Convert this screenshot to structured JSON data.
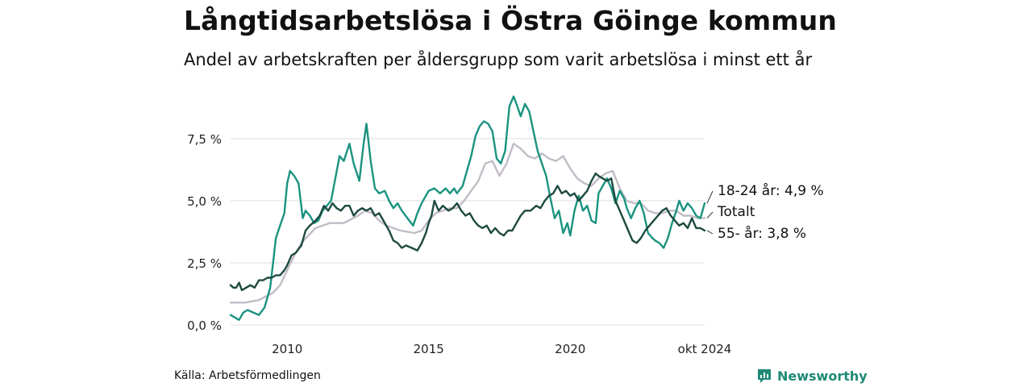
{
  "title": "Långtidsarbetslösa i Östra Göinge kommun",
  "subtitle": "Andel av arbetskraften per åldersgrupp som varit arbetslösa i minst ett år",
  "source": "Källa: Arbetsförmedlingen",
  "brand": {
    "name": "Newsworthy",
    "icon": "bar-chart-speech-icon",
    "color": "#1f8a77"
  },
  "chart_data": {
    "type": "line",
    "x_unit": "year",
    "xlim": [
      2008.0,
      2024.75
    ],
    "ylim": [
      0,
      9.5
    ],
    "y_ticks": [
      {
        "value": 0,
        "label": "0,0 %"
      },
      {
        "value": 2.5,
        "label": "2,5 %"
      },
      {
        "value": 5,
        "label": "5,0 %"
      },
      {
        "value": 7.5,
        "label": "7,5 %"
      }
    ],
    "x_ticks": [
      {
        "value": 2010,
        "label": "2010"
      },
      {
        "value": 2015,
        "label": "2015"
      },
      {
        "value": 2020,
        "label": "2020"
      },
      {
        "value": 2024.75,
        "label": "okt 2024"
      }
    ],
    "grid": "horizontal",
    "series": [
      {
        "name": "Totalt",
        "end_label": "Totalt",
        "color": "#c2bcc6",
        "points": [
          [
            2008.0,
            0.9
          ],
          [
            2008.5,
            0.9
          ],
          [
            2009.0,
            1.0
          ],
          [
            2009.5,
            1.3
          ],
          [
            2009.75,
            1.6
          ],
          [
            2010.0,
            2.2
          ],
          [
            2010.25,
            2.8
          ],
          [
            2010.5,
            3.3
          ],
          [
            2010.75,
            3.6
          ],
          [
            2011.0,
            3.9
          ],
          [
            2011.5,
            4.1
          ],
          [
            2012.0,
            4.1
          ],
          [
            2012.5,
            4.4
          ],
          [
            2012.75,
            4.6
          ],
          [
            2013.0,
            4.5
          ],
          [
            2013.25,
            4.2
          ],
          [
            2013.5,
            4.0
          ],
          [
            2013.75,
            3.9
          ],
          [
            2014.0,
            3.8
          ],
          [
            2014.5,
            3.7
          ],
          [
            2014.75,
            3.8
          ],
          [
            2015.0,
            4.2
          ],
          [
            2015.25,
            4.5
          ],
          [
            2015.5,
            4.6
          ],
          [
            2015.75,
            4.7
          ],
          [
            2016.0,
            4.7
          ],
          [
            2016.25,
            5.0
          ],
          [
            2016.5,
            5.4
          ],
          [
            2016.75,
            5.8
          ],
          [
            2017.0,
            6.5
          ],
          [
            2017.25,
            6.6
          ],
          [
            2017.5,
            6.0
          ],
          [
            2017.75,
            6.5
          ],
          [
            2018.0,
            7.3
          ],
          [
            2018.25,
            7.1
          ],
          [
            2018.5,
            6.8
          ],
          [
            2018.75,
            6.7
          ],
          [
            2019.0,
            6.9
          ],
          [
            2019.25,
            6.7
          ],
          [
            2019.5,
            6.6
          ],
          [
            2019.75,
            6.8
          ],
          [
            2020.0,
            6.3
          ],
          [
            2020.25,
            5.9
          ],
          [
            2020.5,
            5.7
          ],
          [
            2020.75,
            5.6
          ],
          [
            2021.0,
            5.9
          ],
          [
            2021.25,
            6.1
          ],
          [
            2021.5,
            6.2
          ],
          [
            2021.75,
            5.5
          ],
          [
            2022.0,
            5.0
          ],
          [
            2022.25,
            4.9
          ],
          [
            2022.5,
            4.9
          ],
          [
            2022.75,
            4.6
          ],
          [
            2023.0,
            4.5
          ],
          [
            2023.25,
            4.5
          ],
          [
            2023.5,
            4.6
          ],
          [
            2023.75,
            4.6
          ],
          [
            2024.0,
            4.4
          ],
          [
            2024.25,
            4.4
          ],
          [
            2024.5,
            4.3
          ],
          [
            2024.75,
            4.3
          ]
        ]
      },
      {
        "name": "18-24 år",
        "end_label": "18-24 år: 4,9 %",
        "color": "#1a9380",
        "points": [
          [
            2008.0,
            0.4
          ],
          [
            2008.15,
            0.3
          ],
          [
            2008.3,
            0.2
          ],
          [
            2008.45,
            0.5
          ],
          [
            2008.6,
            0.6
          ],
          [
            2008.8,
            0.5
          ],
          [
            2009.0,
            0.4
          ],
          [
            2009.2,
            0.7
          ],
          [
            2009.4,
            1.5
          ],
          [
            2009.5,
            2.5
          ],
          [
            2009.6,
            3.5
          ],
          [
            2009.75,
            4.0
          ],
          [
            2009.9,
            4.5
          ],
          [
            2010.0,
            5.7
          ],
          [
            2010.1,
            6.2
          ],
          [
            2010.25,
            6.0
          ],
          [
            2010.4,
            5.7
          ],
          [
            2010.55,
            4.3
          ],
          [
            2010.65,
            4.6
          ],
          [
            2010.8,
            4.4
          ],
          [
            2010.95,
            4.1
          ],
          [
            2011.1,
            4.2
          ],
          [
            2011.25,
            4.6
          ],
          [
            2011.4,
            4.8
          ],
          [
            2011.55,
            5.0
          ],
          [
            2011.7,
            5.9
          ],
          [
            2011.85,
            6.8
          ],
          [
            2012.0,
            6.6
          ],
          [
            2012.2,
            7.3
          ],
          [
            2012.35,
            6.5
          ],
          [
            2012.55,
            5.8
          ],
          [
            2012.7,
            7.3
          ],
          [
            2012.8,
            8.1
          ],
          [
            2012.95,
            6.6
          ],
          [
            2013.1,
            5.5
          ],
          [
            2013.25,
            5.3
          ],
          [
            2013.45,
            5.4
          ],
          [
            2013.6,
            5.0
          ],
          [
            2013.75,
            4.7
          ],
          [
            2013.9,
            4.9
          ],
          [
            2014.05,
            4.6
          ],
          [
            2014.25,
            4.3
          ],
          [
            2014.45,
            4.0
          ],
          [
            2014.6,
            4.5
          ],
          [
            2014.75,
            4.9
          ],
          [
            2014.9,
            5.2
          ],
          [
            2015.0,
            5.4
          ],
          [
            2015.2,
            5.5
          ],
          [
            2015.4,
            5.3
          ],
          [
            2015.6,
            5.5
          ],
          [
            2015.75,
            5.3
          ],
          [
            2015.9,
            5.5
          ],
          [
            2016.0,
            5.3
          ],
          [
            2016.2,
            5.6
          ],
          [
            2016.35,
            6.2
          ],
          [
            2016.5,
            6.8
          ],
          [
            2016.65,
            7.6
          ],
          [
            2016.8,
            8.0
          ],
          [
            2016.95,
            8.2
          ],
          [
            2017.1,
            8.1
          ],
          [
            2017.25,
            7.8
          ],
          [
            2017.4,
            6.7
          ],
          [
            2017.55,
            6.5
          ],
          [
            2017.7,
            7.0
          ],
          [
            2017.85,
            8.8
          ],
          [
            2018.0,
            9.2
          ],
          [
            2018.1,
            8.9
          ],
          [
            2018.25,
            8.4
          ],
          [
            2018.4,
            8.9
          ],
          [
            2018.55,
            8.6
          ],
          [
            2018.7,
            7.8
          ],
          [
            2018.85,
            7.0
          ],
          [
            2019.0,
            6.5
          ],
          [
            2019.15,
            6.0
          ],
          [
            2019.3,
            5.1
          ],
          [
            2019.45,
            4.3
          ],
          [
            2019.6,
            4.6
          ],
          [
            2019.75,
            3.7
          ],
          [
            2019.9,
            4.1
          ],
          [
            2020.0,
            3.6
          ],
          [
            2020.15,
            4.6
          ],
          [
            2020.3,
            5.2
          ],
          [
            2020.45,
            4.6
          ],
          [
            2020.6,
            4.8
          ],
          [
            2020.75,
            4.2
          ],
          [
            2020.9,
            4.1
          ],
          [
            2021.0,
            5.3
          ],
          [
            2021.15,
            5.6
          ],
          [
            2021.3,
            5.9
          ],
          [
            2021.45,
            5.5
          ],
          [
            2021.6,
            4.9
          ],
          [
            2021.75,
            5.4
          ],
          [
            2021.9,
            5.1
          ],
          [
            2022.0,
            4.7
          ],
          [
            2022.15,
            4.3
          ],
          [
            2022.3,
            4.7
          ],
          [
            2022.45,
            5.0
          ],
          [
            2022.6,
            4.5
          ],
          [
            2022.75,
            3.7
          ],
          [
            2022.9,
            3.5
          ],
          [
            2023.0,
            3.4
          ],
          [
            2023.15,
            3.3
          ],
          [
            2023.3,
            3.1
          ],
          [
            2023.45,
            3.5
          ],
          [
            2023.6,
            4.1
          ],
          [
            2023.75,
            4.6
          ],
          [
            2023.85,
            5.0
          ],
          [
            2024.0,
            4.6
          ],
          [
            2024.15,
            4.9
          ],
          [
            2024.3,
            4.7
          ],
          [
            2024.45,
            4.4
          ],
          [
            2024.6,
            4.3
          ],
          [
            2024.75,
            4.9
          ]
        ]
      },
      {
        "name": "55- år",
        "end_label": "55- år: 3,8 %",
        "color": "#1d4a40",
        "points": [
          [
            2008.0,
            1.6
          ],
          [
            2008.1,
            1.5
          ],
          [
            2008.2,
            1.5
          ],
          [
            2008.3,
            1.7
          ],
          [
            2008.4,
            1.4
          ],
          [
            2008.55,
            1.5
          ],
          [
            2008.7,
            1.6
          ],
          [
            2008.85,
            1.5
          ],
          [
            2009.0,
            1.8
          ],
          [
            2009.15,
            1.8
          ],
          [
            2009.3,
            1.9
          ],
          [
            2009.45,
            1.9
          ],
          [
            2009.6,
            2.0
          ],
          [
            2009.75,
            2.0
          ],
          [
            2009.9,
            2.2
          ],
          [
            2010.0,
            2.4
          ],
          [
            2010.15,
            2.8
          ],
          [
            2010.3,
            2.9
          ],
          [
            2010.5,
            3.2
          ],
          [
            2010.65,
            3.8
          ],
          [
            2010.8,
            4.0
          ],
          [
            2011.0,
            4.2
          ],
          [
            2011.15,
            4.4
          ],
          [
            2011.3,
            4.8
          ],
          [
            2011.45,
            4.6
          ],
          [
            2011.6,
            4.9
          ],
          [
            2011.75,
            4.7
          ],
          [
            2011.9,
            4.6
          ],
          [
            2012.05,
            4.8
          ],
          [
            2012.2,
            4.8
          ],
          [
            2012.35,
            4.4
          ],
          [
            2012.5,
            4.6
          ],
          [
            2012.65,
            4.7
          ],
          [
            2012.8,
            4.6
          ],
          [
            2012.95,
            4.7
          ],
          [
            2013.1,
            4.4
          ],
          [
            2013.25,
            4.5
          ],
          [
            2013.45,
            4.1
          ],
          [
            2013.6,
            3.8
          ],
          [
            2013.75,
            3.4
          ],
          [
            2013.9,
            3.3
          ],
          [
            2014.05,
            3.1
          ],
          [
            2014.2,
            3.2
          ],
          [
            2014.4,
            3.1
          ],
          [
            2014.6,
            3.0
          ],
          [
            2014.75,
            3.3
          ],
          [
            2014.9,
            3.7
          ],
          [
            2015.0,
            4.1
          ],
          [
            2015.1,
            4.4
          ],
          [
            2015.2,
            5.0
          ],
          [
            2015.35,
            4.6
          ],
          [
            2015.5,
            4.8
          ],
          [
            2015.7,
            4.6
          ],
          [
            2015.85,
            4.7
          ],
          [
            2016.0,
            4.9
          ],
          [
            2016.15,
            4.6
          ],
          [
            2016.3,
            4.4
          ],
          [
            2016.45,
            4.5
          ],
          [
            2016.6,
            4.2
          ],
          [
            2016.75,
            4.0
          ],
          [
            2016.9,
            3.9
          ],
          [
            2017.05,
            4.0
          ],
          [
            2017.2,
            3.7
          ],
          [
            2017.35,
            3.9
          ],
          [
            2017.5,
            3.7
          ],
          [
            2017.65,
            3.6
          ],
          [
            2017.8,
            3.8
          ],
          [
            2017.95,
            3.8
          ],
          [
            2018.1,
            4.1
          ],
          [
            2018.25,
            4.4
          ],
          [
            2018.4,
            4.6
          ],
          [
            2018.6,
            4.6
          ],
          [
            2018.8,
            4.8
          ],
          [
            2018.95,
            4.7
          ],
          [
            2019.1,
            5.0
          ],
          [
            2019.25,
            5.2
          ],
          [
            2019.4,
            5.3
          ],
          [
            2019.55,
            5.6
          ],
          [
            2019.7,
            5.3
          ],
          [
            2019.85,
            5.4
          ],
          [
            2020.0,
            5.2
          ],
          [
            2020.15,
            5.3
          ],
          [
            2020.3,
            5.0
          ],
          [
            2020.45,
            5.2
          ],
          [
            2020.6,
            5.4
          ],
          [
            2020.75,
            5.8
          ],
          [
            2020.9,
            6.1
          ],
          [
            2021.0,
            6.0
          ],
          [
            2021.15,
            5.9
          ],
          [
            2021.3,
            5.8
          ],
          [
            2021.45,
            5.9
          ],
          [
            2021.6,
            5.0
          ],
          [
            2021.75,
            4.6
          ],
          [
            2021.9,
            4.2
          ],
          [
            2022.05,
            3.8
          ],
          [
            2022.2,
            3.4
          ],
          [
            2022.35,
            3.3
          ],
          [
            2022.5,
            3.5
          ],
          [
            2022.65,
            3.8
          ],
          [
            2022.8,
            4.0
          ],
          [
            2022.95,
            4.2
          ],
          [
            2023.1,
            4.4
          ],
          [
            2023.25,
            4.6
          ],
          [
            2023.4,
            4.7
          ],
          [
            2023.55,
            4.4
          ],
          [
            2023.7,
            4.2
          ],
          [
            2023.85,
            4.0
          ],
          [
            2024.0,
            4.1
          ],
          [
            2024.15,
            3.9
          ],
          [
            2024.3,
            4.3
          ],
          [
            2024.45,
            3.9
          ],
          [
            2024.6,
            3.9
          ],
          [
            2024.75,
            3.8
          ]
        ]
      }
    ]
  }
}
